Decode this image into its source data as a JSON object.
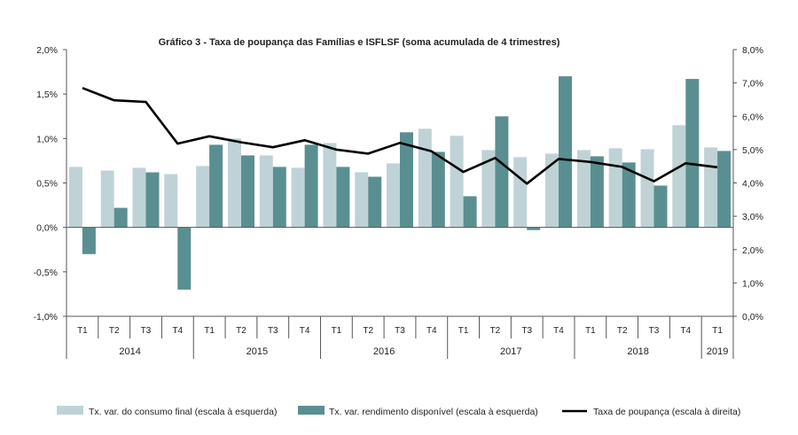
{
  "chart_data": {
    "type": "bar",
    "title": "Gráfico  3 - Taxa de poupança das Famílias e ISFLSF  (soma acumulada de 4 trimestres)",
    "categories": [
      "T1",
      "T2",
      "T3",
      "T4",
      "T1",
      "T2",
      "T3",
      "T4",
      "T1",
      "T2",
      "T3",
      "T4",
      "T1",
      "T2",
      "T3",
      "T4",
      "T1",
      "T2",
      "T3",
      "T4",
      "T1"
    ],
    "years": [
      {
        "label": "2014",
        "quarters": 4
      },
      {
        "label": "2015",
        "quarters": 4
      },
      {
        "label": "2016",
        "quarters": 4
      },
      {
        "label": "2017",
        "quarters": 4
      },
      {
        "label": "2018",
        "quarters": 4
      },
      {
        "label": "2019",
        "quarters": 1
      }
    ],
    "y_left": {
      "ylim": [
        -1.0,
        2.0
      ],
      "ticks": [
        -1.0,
        -0.5,
        0.0,
        0.5,
        1.0,
        1.5,
        2.0
      ],
      "tick_labels": [
        "-1,0%",
        "-0,5%",
        "0,0%",
        "0,5%",
        "1,0%",
        "1,5%",
        "2,0%"
      ]
    },
    "y_right": {
      "ylim": [
        0.0,
        8.0
      ],
      "ticks": [
        0,
        1,
        2,
        3,
        4,
        5,
        6,
        7,
        8
      ],
      "tick_labels": [
        "0,0%",
        "1,0%",
        "2,0%",
        "3,0%",
        "4,0%",
        "5,0%",
        "6,0%",
        "7,0%",
        "8,0%"
      ]
    },
    "series": [
      {
        "name": "Tx. var. do consumo final (escala à esquerda)",
        "kind": "bar",
        "axis": "left",
        "color": "#bfd3d6",
        "values": [
          0.68,
          0.64,
          0.67,
          0.6,
          0.69,
          1.0,
          0.81,
          0.67,
          0.95,
          0.62,
          0.72,
          1.11,
          1.03,
          0.87,
          0.79,
          0.83,
          0.87,
          0.89,
          0.88,
          1.15,
          0.9
        ]
      },
      {
        "name": "Tx. var. rendimento disponível (escala à esquerda)",
        "kind": "bar",
        "axis": "left",
        "color": "#5a8f91",
        "values": [
          -0.3,
          0.22,
          0.62,
          -0.7,
          0.93,
          0.81,
          0.68,
          0.93,
          0.68,
          0.57,
          1.07,
          0.85,
          0.35,
          1.25,
          -0.03,
          1.7,
          0.8,
          0.73,
          0.47,
          1.67,
          0.86
        ]
      },
      {
        "name": "Taxa de poupança (escala à direita)",
        "kind": "line",
        "axis": "right",
        "color": "#000000",
        "values": [
          6.85,
          6.48,
          6.43,
          5.18,
          5.4,
          5.22,
          5.07,
          5.28,
          5.0,
          4.88,
          5.2,
          4.95,
          4.33,
          4.75,
          3.98,
          4.72,
          4.63,
          4.48,
          4.05,
          4.59,
          4.47
        ]
      }
    ],
    "legend_position": "bottom",
    "grid": false
  }
}
